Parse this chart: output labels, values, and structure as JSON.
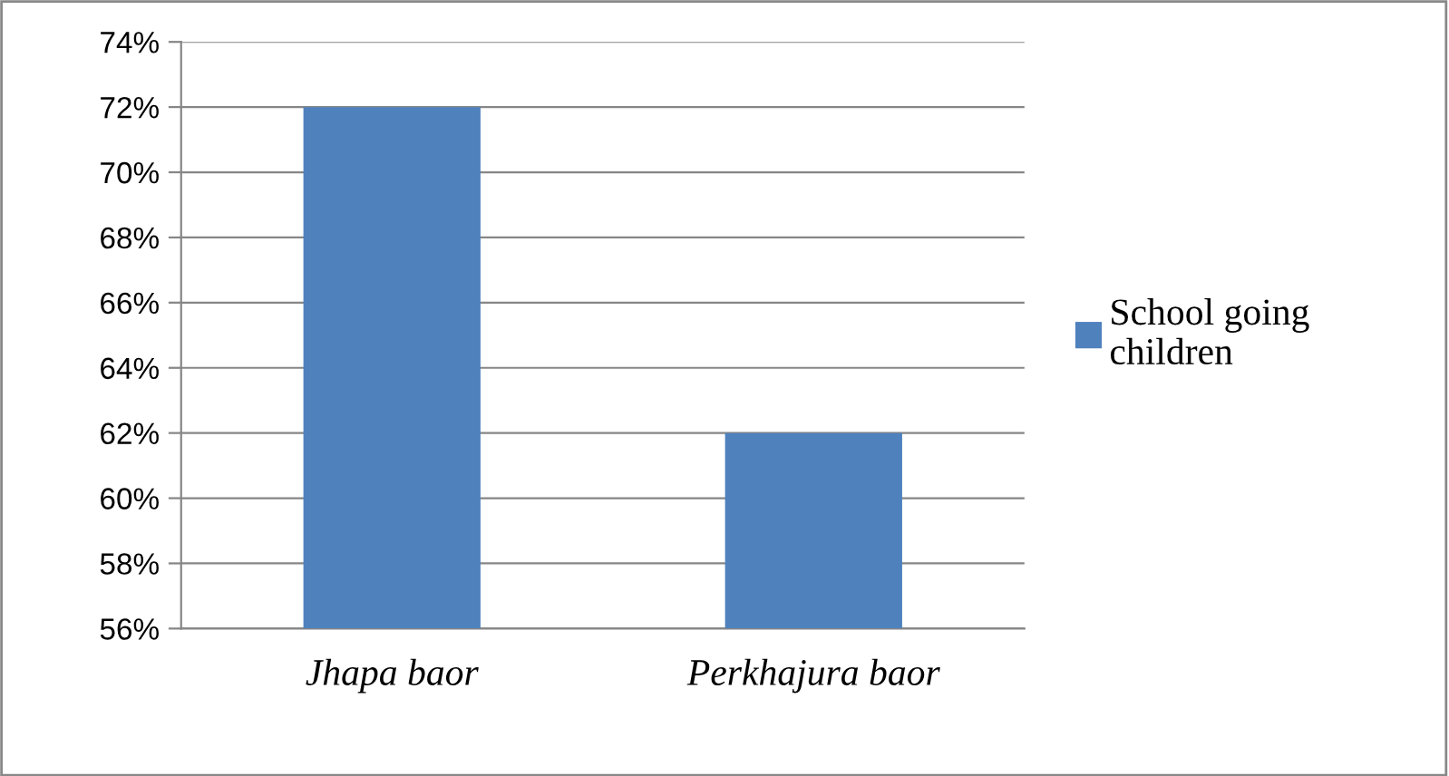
{
  "chart_data": {
    "type": "bar",
    "categories": [
      "Jhapa baor",
      "Perkhajura baor"
    ],
    "series": [
      {
        "name": "School going\nchildren",
        "color": "#4f81bd",
        "values": [
          72,
          62
        ]
      }
    ],
    "ylim": [
      56,
      74
    ],
    "yticks": [
      {
        "value": 56,
        "label": "56%"
      },
      {
        "value": 58,
        "label": "58%"
      },
      {
        "value": 60,
        "label": "60%"
      },
      {
        "value": 62,
        "label": "62%"
      },
      {
        "value": 64,
        "label": "64%"
      },
      {
        "value": 66,
        "label": "66%"
      },
      {
        "value": 68,
        "label": "68%"
      },
      {
        "value": 70,
        "label": "70%"
      },
      {
        "value": 72,
        "label": "72%"
      },
      {
        "value": 74,
        "label": "74%"
      }
    ],
    "grid": "y",
    "legend": "right"
  }
}
